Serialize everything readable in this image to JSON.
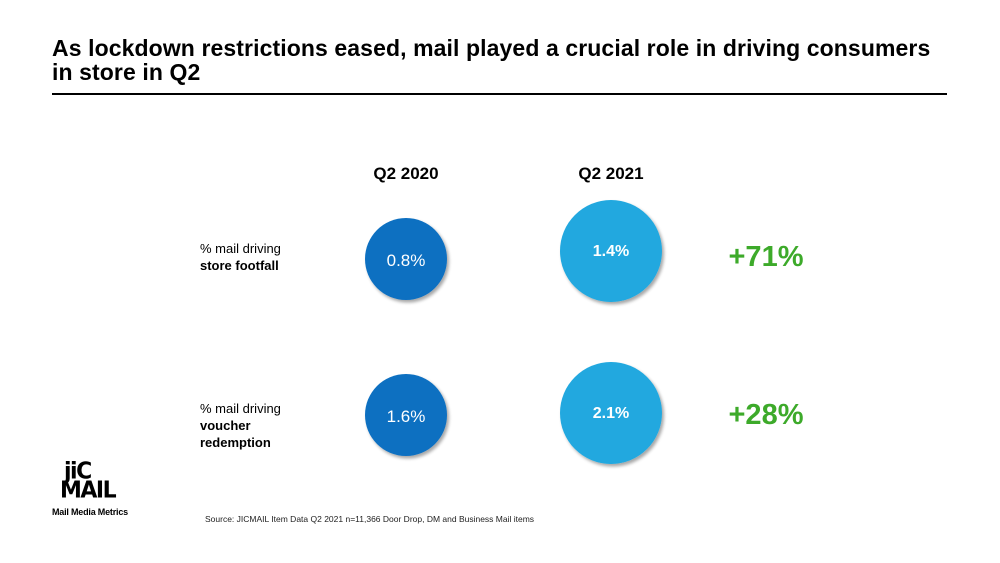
{
  "title": "As lockdown restrictions eased, mail played a crucial role in driving consumers in store in Q2",
  "colors": {
    "q2_2020": "#0b6fc1",
    "q2_2021": "#21a8df",
    "change": "#3daa2a",
    "bubble_text": "#ffffff"
  },
  "chart_data": {
    "type": "bubble",
    "title": "As lockdown restrictions eased, mail played a crucial role in driving consumers in store in Q2",
    "categories": [
      "Q2 2020",
      "Q2 2021"
    ],
    "rows": [
      {
        "label_plain": "% mail driving",
        "label_bold": "store footfall",
        "values": [
          0.8,
          1.4
        ],
        "value_labels": [
          "0.8%",
          "1.4%"
        ],
        "change": "+71%"
      },
      {
        "label_plain": "% mail driving",
        "label_bold": "voucher redemption",
        "label_bold_lines": [
          "voucher",
          "redemption"
        ],
        "values": [
          1.6,
          2.1
        ],
        "value_labels": [
          "1.6%",
          "2.1%"
        ],
        "change": "+28%"
      }
    ],
    "unit": "%"
  },
  "logo": {
    "line1": "jiC",
    "line2": "MAIL",
    "tagline": "Mail Media Metrics"
  },
  "source": "Source: JICMAIL Item Data Q2 2021 n=11,366 Door Drop, DM and Business Mail items"
}
